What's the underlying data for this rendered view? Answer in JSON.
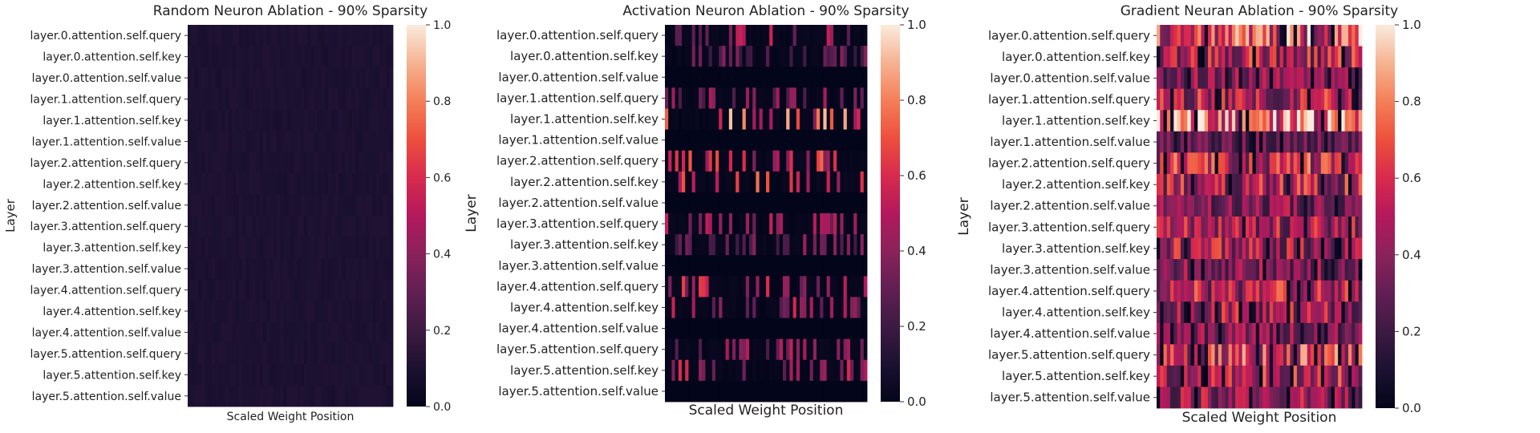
{
  "chart_data": [
    {
      "type": "heatmap",
      "title": "Random Neuron Ablation - 90% Sparsity",
      "xlabel": "Scaled Weight Position",
      "ylabel": "Layer",
      "rows": [
        "layer.0.attention.self.query",
        "layer.0.attention.self.key",
        "layer.0.attention.self.value",
        "layer.1.attention.self.query",
        "layer.1.attention.self.key",
        "layer.1.attention.self.value",
        "layer.2.attention.self.query",
        "layer.2.attention.self.key",
        "layer.2.attention.self.value",
        "layer.3.attention.self.query",
        "layer.3.attention.self.key",
        "layer.3.attention.self.value",
        "layer.4.attention.self.query",
        "layer.4.attention.self.key",
        "layer.4.attention.self.value",
        "layer.5.attention.self.query",
        "layer.5.attention.self.key",
        "layer.5.attention.self.value"
      ],
      "columns": 60,
      "value_range": [
        0.0,
        1.0
      ],
      "colorbar_ticks": [
        "0.0",
        "0.2",
        "0.4",
        "0.6",
        "0.8",
        "1.0"
      ],
      "pattern": "uniform",
      "row_levels": [
        0.1,
        0.1,
        0.1,
        0.1,
        0.1,
        0.1,
        0.1,
        0.1,
        0.1,
        0.1,
        0.1,
        0.1,
        0.1,
        0.1,
        0.1,
        0.1,
        0.1,
        0.1
      ]
    },
    {
      "type": "heatmap",
      "title": "Activation Neuron Ablation - 90% Sparsity",
      "xlabel": "Scaled Weight Position",
      "ylabel": "Layer",
      "rows": [
        "layer.0.attention.self.query",
        "layer.0.attention.self.key",
        "layer.0.attention.self.value",
        "layer.1.attention.self.query",
        "layer.1.attention.self.key",
        "layer.1.attention.self.value",
        "layer.2.attention.self.query",
        "layer.2.attention.self.key",
        "layer.2.attention.self.value",
        "layer.3.attention.self.query",
        "layer.3.attention.self.key",
        "layer.3.attention.self.value",
        "layer.4.attention.self.query",
        "layer.4.attention.self.key",
        "layer.4.attention.self.value",
        "layer.5.attention.self.query",
        "layer.5.attention.self.key",
        "layer.5.attention.self.value"
      ],
      "columns": 60,
      "value_range": [
        0.0,
        1.0
      ],
      "colorbar_ticks": [
        "0.0",
        "0.2",
        "0.4",
        "0.6",
        "0.8",
        "1.0"
      ],
      "pattern": "sparse",
      "row_levels": [
        0.55,
        0.35,
        0.0,
        0.45,
        0.85,
        0.0,
        0.75,
        0.7,
        0.0,
        0.5,
        0.4,
        0.0,
        0.6,
        0.55,
        0.0,
        0.5,
        0.55,
        0.0
      ]
    },
    {
      "type": "heatmap",
      "title": "Gradient Neuran Ablation - 90% Sparsity",
      "xlabel": "Scaled Weight Position",
      "ylabel": "Layer",
      "rows": [
        "layer.0.attention.self.query",
        "layer.0.attention.self.key",
        "layer.0.attention.self.value",
        "layer.1.attention.self.query",
        "layer.1.attention.self.key",
        "layer.1.attention.self.value",
        "layer.2.attention.self.query",
        "layer.2.attention.self.key",
        "layer.2.attention.self.value",
        "layer.3.attention.self.query",
        "layer.3.attention.self.key",
        "layer.3.attention.self.value",
        "layer.4.attention.self.query",
        "layer.4.attention.self.key",
        "layer.4.attention.self.value",
        "layer.5.attention.self.query",
        "layer.5.attention.self.key",
        "layer.5.attention.self.value"
      ],
      "columns": 60,
      "value_range": [
        0.0,
        1.0
      ],
      "colorbar_ticks": [
        "0.0",
        "0.2",
        "0.4",
        "0.6",
        "0.8",
        "1.0"
      ],
      "pattern": "dense",
      "row_levels": [
        0.8,
        0.6,
        0.45,
        0.6,
        0.85,
        0.35,
        0.65,
        0.6,
        0.45,
        0.55,
        0.55,
        0.45,
        0.6,
        0.55,
        0.45,
        0.7,
        0.6,
        0.5
      ]
    }
  ]
}
